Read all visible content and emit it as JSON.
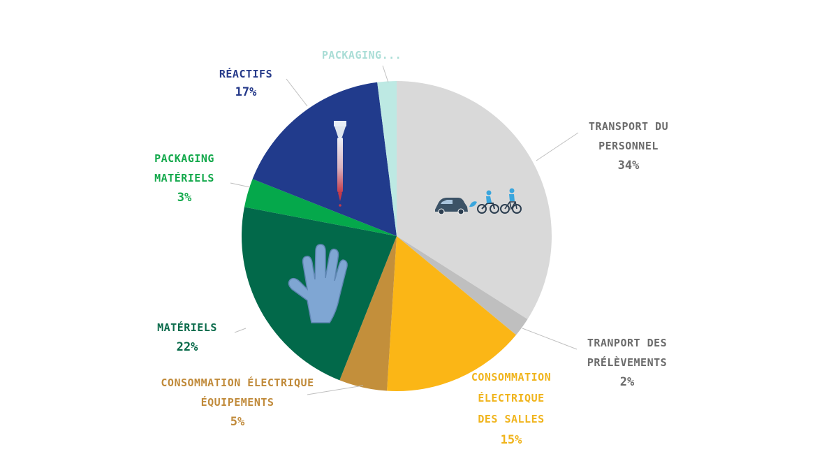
{
  "chart_data": {
    "type": "pie",
    "title": "",
    "slices": [
      {
        "label_lines": [
          "TRANSPORT DU",
          "PERSONNEL"
        ],
        "value": 34,
        "display": "34%",
        "color": "#d9d9d9",
        "label_color": "#6b6b6b",
        "icon": "car-motorbike-bicycle-icon"
      },
      {
        "label_lines": [
          "TRANPORT DES",
          "PRÉLÈVEMENTS"
        ],
        "value": 2,
        "display": "2%",
        "color": "#bfbfbf",
        "label_color": "#6b6b6b"
      },
      {
        "label_lines": [
          "CONSOMMATION",
          "ÉLECTRIQUE",
          "DES SALLES"
        ],
        "value": 15,
        "display": "15%",
        "color": "#fbb616",
        "label_color": "#f0b41c"
      },
      {
        "label_lines": [
          "CONSOMMATION ÉLECTRIQUE",
          "ÉQUIPEMENTS"
        ],
        "value": 5,
        "display": "5%",
        "color": "#c38f3b",
        "label_color": "#c08a3a"
      },
      {
        "label_lines": [
          "MATÉRIELS"
        ],
        "value": 22,
        "display": "22%",
        "color": "#02694a",
        "label_color": "#0a6b4b",
        "icon": "glove-icon"
      },
      {
        "label_lines": [
          "PACKAGING",
          "MATÉRIELS"
        ],
        "value": 3,
        "display": "3%",
        "color": "#05a84b",
        "label_color": "#14a94c"
      },
      {
        "label_lines": [
          "RÉACTIFS"
        ],
        "value": 17,
        "display": "17%",
        "color": "#213b8c",
        "label_color": "#263a8a",
        "icon": "pipette-icon"
      },
      {
        "label_lines": [
          "PACKAGING..."
        ],
        "value": 2,
        "display": "",
        "color": "#bde9e3",
        "label_color": "#a9ddd6"
      }
    ]
  }
}
